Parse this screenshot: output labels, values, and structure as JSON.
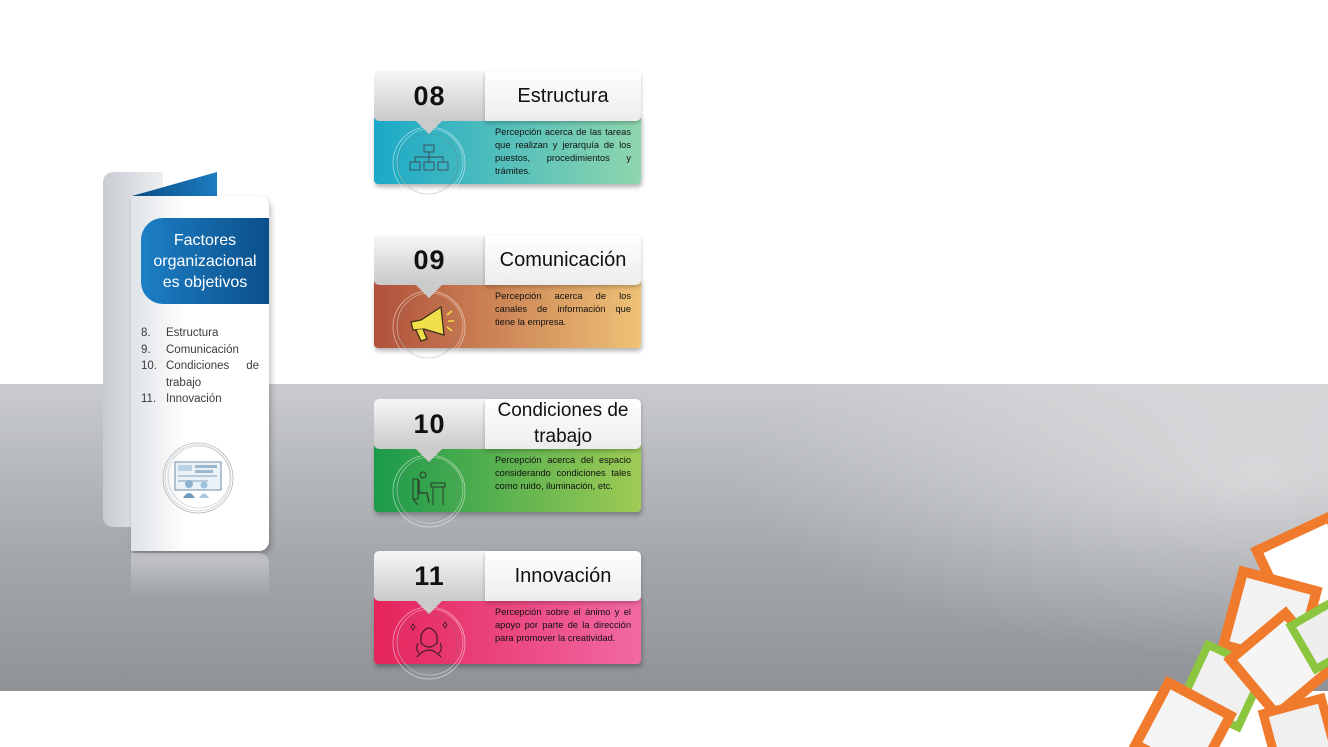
{
  "brochure": {
    "title": "Factores organizacional es objetivos",
    "items": [
      {
        "num": "8.",
        "label": "Estructura"
      },
      {
        "num": "9.",
        "label": "Comunicación"
      },
      {
        "num": "10.",
        "label": "Condiciones de trabajo"
      },
      {
        "num": "11.",
        "label": "Innovación"
      }
    ]
  },
  "cards": [
    {
      "number": "08",
      "title": "Estructura",
      "description": "Percepción acerca de las tareas que realizan y jerarquía de los puestos, procedimientos y trámites.",
      "icon": "org-chart-icon",
      "colors": [
        "#1aa9c8",
        "#8fd6ad"
      ]
    },
    {
      "number": "09",
      "title": "Comunicación",
      "description": "Percepción acerca de los canales de información que tiene la empresa.",
      "icon": "megaphone-icon",
      "colors": [
        "#b0503b",
        "#eec276"
      ]
    },
    {
      "number": "10",
      "title": "Condiciones de trabajo",
      "description": "Percepción acerca del espacio considerando condiciones tales como ruido, iluminación, etc.",
      "icon": "workstation-icon",
      "colors": [
        "#1a9a4a",
        "#9fcb55"
      ]
    },
    {
      "number": "11",
      "title": "Innovación",
      "description": "Percepción sobre el ánimo y el apoyo por parte de la dirección para promover la creatividad.",
      "icon": "creative-person-icon",
      "colors": [
        "#e5245b",
        "#f269a4"
      ]
    }
  ],
  "decoration_colors": {
    "orange": "#f07b2c",
    "green": "#8cc63f"
  }
}
